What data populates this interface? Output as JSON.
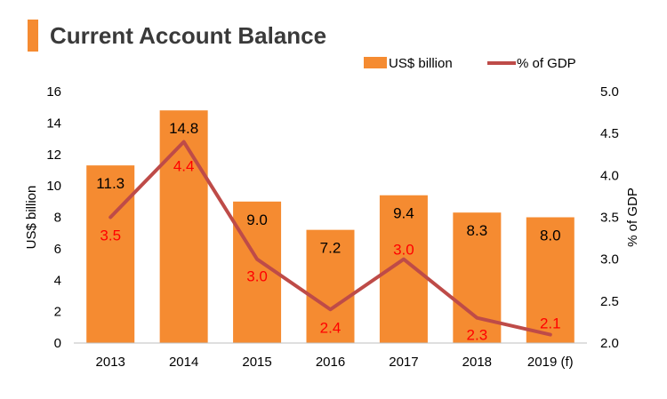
{
  "chart_data": {
    "type": "bar+line",
    "title": "Current Account Balance",
    "categories": [
      "2013",
      "2014",
      "2015",
      "2016",
      "2017",
      "2018",
      "2019 (f)"
    ],
    "series": [
      {
        "name": "US$ billion",
        "type": "bar",
        "axis": "left",
        "values": [
          11.3,
          14.8,
          9.0,
          7.2,
          9.4,
          8.3,
          8.0
        ],
        "labels": [
          "11.3",
          "14.8",
          "9.0",
          "7.2",
          "9.4",
          "8.3",
          "8.0"
        ],
        "color": "#F58B31"
      },
      {
        "name": "% of GDP",
        "type": "line",
        "axis": "right",
        "values": [
          3.5,
          4.4,
          3.0,
          2.4,
          3.0,
          2.3,
          2.1
        ],
        "labels": [
          "3.5",
          "4.4",
          "3.0",
          "2.4",
          "3.0",
          "2.3",
          "2.1"
        ],
        "color": "#BE4B48",
        "label_color": "#FF0000"
      }
    ],
    "ylabel": "US$ billion",
    "ylim": [
      0,
      16
    ],
    "yticks": [
      "0",
      "2",
      "4",
      "6",
      "8",
      "10",
      "12",
      "14",
      "16"
    ],
    "y2label": "% of GDP",
    "y2lim": [
      2.0,
      5.0
    ],
    "y2ticks": [
      "2.0",
      "2.5",
      "3.0",
      "3.5",
      "4.0",
      "4.5",
      "5.0"
    ],
    "legend_position": "top-right",
    "grid": false
  },
  "colors": {
    "accent": "#F58B31",
    "title_text": "#3A3A3A",
    "axis": "#BFBFBF"
  }
}
